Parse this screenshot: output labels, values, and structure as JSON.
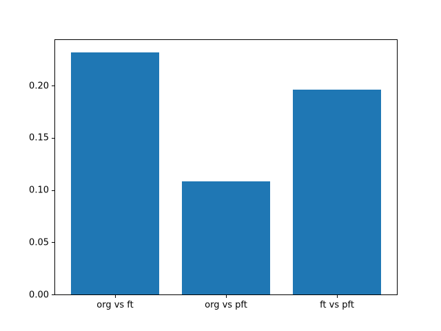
{
  "chart_data": {
    "type": "bar",
    "categories": [
      "org vs ft",
      "org vs pft",
      "ft vs pft"
    ],
    "values": [
      0.232,
      0.108,
      0.196
    ],
    "title": "",
    "xlabel": "",
    "ylabel": "",
    "ylim": [
      0,
      0.2436
    ],
    "xlim": [
      -0.54,
      2.54
    ],
    "bar_width": 0.8,
    "yticks": [
      0.0,
      0.05,
      0.1,
      0.15,
      0.2
    ],
    "ytick_labels": [
      "0.00",
      "0.05",
      "0.10",
      "0.15",
      "0.20"
    ],
    "grid": false,
    "legend": null,
    "colors": {
      "bar": "#1f77b4",
      "spine": "#000000",
      "tick": "#000000",
      "text": "#000000",
      "background": "#ffffff"
    }
  }
}
